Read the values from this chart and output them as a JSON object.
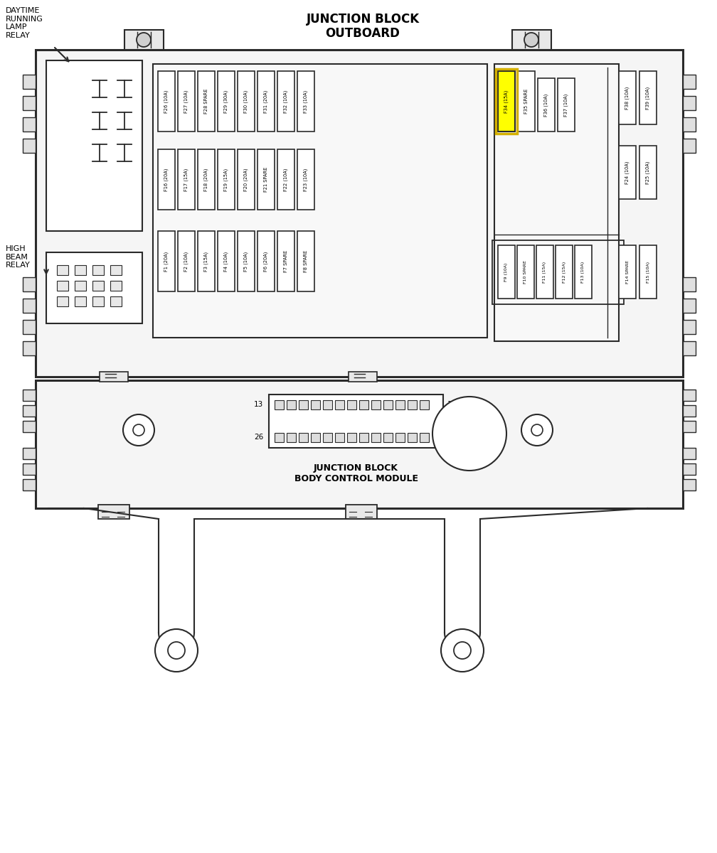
{
  "bg_color": "#ffffff",
  "lc": "#2a2a2a",
  "title_line1": "JUNCTION BLOCK",
  "title_line2": "OUTBOARD",
  "bcm_label": "JUNCTION BLOCK\nBODY CONTROL MODULE",
  "label_daytime": "DAYTIME\nRUNNING\nLAMP\nRELAY",
  "label_highbeam": "HIGH\nBEAM\nRELAY",
  "top_fuses": [
    "F26 (10A)",
    "F27 (10A)",
    "F28 SPARE",
    "F29 (30A)",
    "F30 (10A)",
    "F31 (20A)",
    "F32 (10A)",
    "F33 (10A)"
  ],
  "mid_fuses": [
    "F16 (20A)",
    "F17 (15A)",
    "F18 (20A)",
    "F19 (15A)",
    "F20 (20A)",
    "F21 SPARE",
    "F22 (10A)",
    "F23 (10A)"
  ],
  "bot_fuses": [
    "F1 (20A)",
    "F2 (10A)",
    "F3 (15A)",
    "F4 (10A)",
    "F5 (10A)",
    "F6 (20A)",
    "F7 SPARE",
    "F8 SPARE"
  ],
  "r_top_fuses": [
    "F34 (15A)",
    "F35 SPARE",
    "F36 (10A)",
    "F37 (10A)"
  ],
  "r_top_pair": [
    "F38 (10A)",
    "F39 (10A)"
  ],
  "r_mid_pair": [
    "F24 (10A)",
    "F25 (10A)"
  ],
  "r_bot_fuses": [
    "F9 (10A)",
    "F10 SPARE",
    "F11 (15A)",
    "F12 (15A)",
    "F13 (10A)"
  ],
  "r_bot_pair": [
    "F14 SPARE",
    "F15 (10A)"
  ],
  "highlight_color": "#ffff00",
  "highlight_border": "#cccc00"
}
